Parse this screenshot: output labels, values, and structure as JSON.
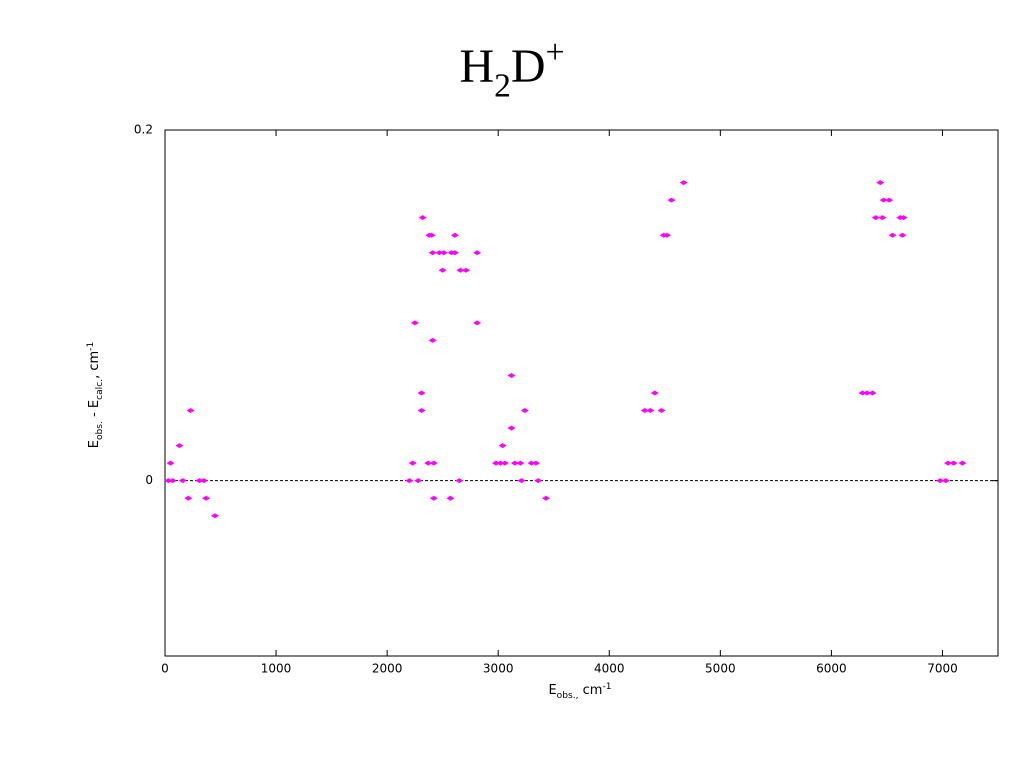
{
  "chart_data": {
    "type": "scatter",
    "title": [
      "H",
      "2",
      "D",
      "+"
    ],
    "xlabel": [
      "E",
      "obs.,",
      " cm",
      "-1"
    ],
    "ylabel": [
      "E",
      "obs.",
      " - E",
      "calc.",
      ", cm",
      "-1"
    ],
    "color": "#ff00ff",
    "xlim": [
      0,
      7500
    ],
    "ylim": [
      -0.1,
      0.2
    ],
    "xticks": [
      0,
      1000,
      2000,
      3000,
      4000,
      5000,
      6000,
      7000
    ],
    "yticks": [
      0,
      0.2
    ],
    "reference_line": 0,
    "x": [
      30,
      50,
      70,
      130,
      160,
      210,
      230,
      310,
      350,
      370,
      450,
      2200,
      2230,
      2250,
      2280,
      2310,
      2310,
      2320,
      2370,
      2380,
      2400,
      2410,
      2410,
      2420,
      2420,
      2470,
      2500,
      2510,
      2570,
      2580,
      2610,
      2610,
      2650,
      2660,
      2710,
      2810,
      2810,
      2980,
      3020,
      3040,
      3060,
      3120,
      3120,
      3150,
      3200,
      3210,
      3240,
      3300,
      3340,
      3360,
      3430,
      4320,
      4370,
      4410,
      4470,
      4490,
      4520,
      4560,
      4670,
      6280,
      6320,
      6370,
      6400,
      6440,
      6460,
      6470,
      6520,
      6550,
      6620,
      6650,
      6640,
      6980,
      7030,
      7050,
      7100,
      7180
    ],
    "values": [
      0,
      0.01,
      0,
      0.02,
      0,
      -0.01,
      0.04,
      0,
      0,
      -0.01,
      -0.02,
      0,
      0.01,
      0.09,
      0,
      0.04,
      0.05,
      0.15,
      0.01,
      0.14,
      0.14,
      0.08,
      0.13,
      0.01,
      -0.01,
      0.13,
      0.12,
      0.13,
      -0.01,
      0.13,
      0.14,
      0.13,
      0,
      0.12,
      0.12,
      0.09,
      0.13,
      0.01,
      0.01,
      0.02,
      0.01,
      0.06,
      0.03,
      0.01,
      0.01,
      0,
      0.04,
      0.01,
      0.01,
      0,
      -0.01,
      0.04,
      0.04,
      0.05,
      0.04,
      0.14,
      0.14,
      0.16,
      0.17,
      0.05,
      0.05,
      0.05,
      0.15,
      0.17,
      0.15,
      0.16,
      0.16,
      0.14,
      0.15,
      0.15,
      0.14,
      0,
      0,
      0.01,
      0.01,
      0.01
    ]
  }
}
